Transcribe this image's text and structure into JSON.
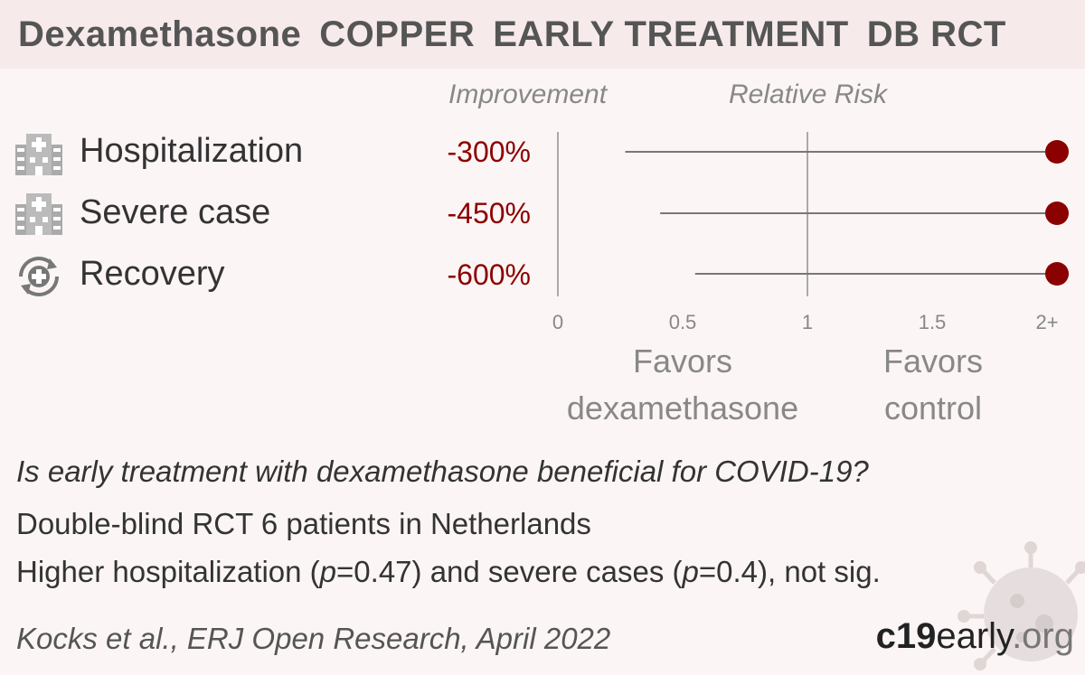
{
  "header": {
    "drug": "Dexamethasone",
    "trial": "COPPER",
    "stage": "EARLY TREATMENT",
    "design": "DB RCT"
  },
  "columns": {
    "improvement": "Improvement",
    "relative_risk": "Relative Risk"
  },
  "rows": [
    {
      "label": "Hospitalization",
      "improvement": "-300%",
      "icon": "hospital-icon"
    },
    {
      "label": "Severe case",
      "improvement": "-450%",
      "icon": "hospital-icon"
    },
    {
      "label": "Recovery",
      "improvement": "-600%",
      "icon": "recovery-icon"
    }
  ],
  "chart_data": {
    "type": "forest",
    "x_ticks": [
      "0",
      "0.5",
      "1",
      "1.5",
      "2+"
    ],
    "xlim": [
      0,
      2
    ],
    "reference_line": 1,
    "series": [
      {
        "label": "Hospitalization",
        "rr": 2,
        "ci_low": 0.27,
        "ci_high": 2
      },
      {
        "label": "Severe case",
        "rr": 2,
        "ci_low": 0.41,
        "ci_high": 2
      },
      {
        "label": "Recovery",
        "rr": 2,
        "ci_low": 0.55,
        "ci_high": 2
      }
    ],
    "favors_left": [
      "Favors",
      "dexamethasone"
    ],
    "favors_right": [
      "Favors",
      "control"
    ],
    "colors": {
      "point": "#8b0000",
      "line": "#777777",
      "axis": "#aaaaaa"
    }
  },
  "summary": {
    "question": "Is early treatment with dexamethasone beneficial for COVID-19?",
    "design": "Double-blind RCT 6 patients in Netherlands",
    "result_prefix": "Higher hospitalization (",
    "p_label": "p",
    "p1": "=0.47",
    "result_mid": ") and severe cases (",
    "p2": "=0.4",
    "result_suffix": "), not sig."
  },
  "citation": "Kocks et al., ERJ Open Research, April 2022",
  "brand": {
    "c19": "c19",
    "early": "early",
    "org": ".org"
  }
}
